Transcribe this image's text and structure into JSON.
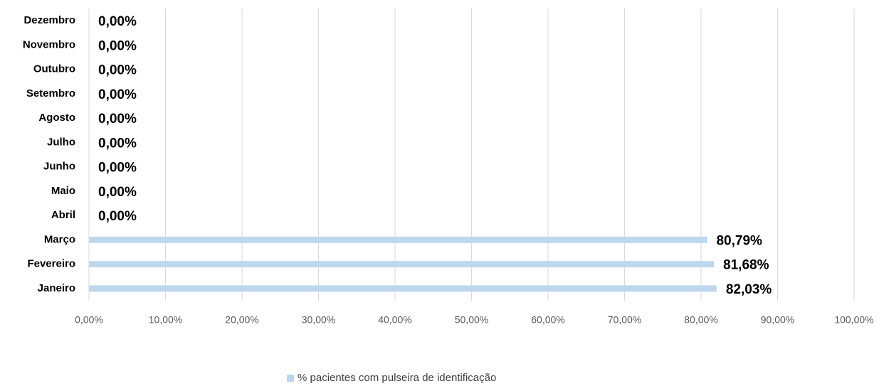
{
  "chart_data": {
    "type": "bar",
    "orientation": "horizontal",
    "categories": [
      "Janeiro",
      "Fevereiro",
      "Março",
      "Abril",
      "Maio",
      "Junho",
      "Julho",
      "Agosto",
      "Setembro",
      "Outubro",
      "Novembro",
      "Dezembro"
    ],
    "series": [
      {
        "name": "% pacientes com pulseira de identificação",
        "color": "#bdd7ee",
        "values": [
          82.03,
          81.68,
          80.79,
          0,
          0,
          0,
          0,
          0,
          0,
          0,
          0,
          0
        ],
        "value_labels": [
          "82,03%",
          "81,68%",
          "80,79%",
          "0,00%",
          "0,00%",
          "0,00%",
          "0,00%",
          "0,00%",
          "0,00%",
          "0,00%",
          "0,00%",
          "0,00%"
        ]
      }
    ],
    "xlim": [
      0,
      100
    ],
    "xticks": [
      {
        "value": 0,
        "label": "0,00%"
      },
      {
        "value": 10,
        "label": "10,00%"
      },
      {
        "value": 20,
        "label": "20,00%"
      },
      {
        "value": 30,
        "label": "30,00%"
      },
      {
        "value": 40,
        "label": "40,00%"
      },
      {
        "value": 50,
        "label": "50,00%"
      },
      {
        "value": 60,
        "label": "60,00%"
      },
      {
        "value": 70,
        "label": "70,00%"
      },
      {
        "value": 80,
        "label": "80,00%"
      },
      {
        "value": 90,
        "label": "90,00%"
      },
      {
        "value": 100,
        "label": "100,00%"
      }
    ],
    "grid": true,
    "legend": "bottom"
  }
}
